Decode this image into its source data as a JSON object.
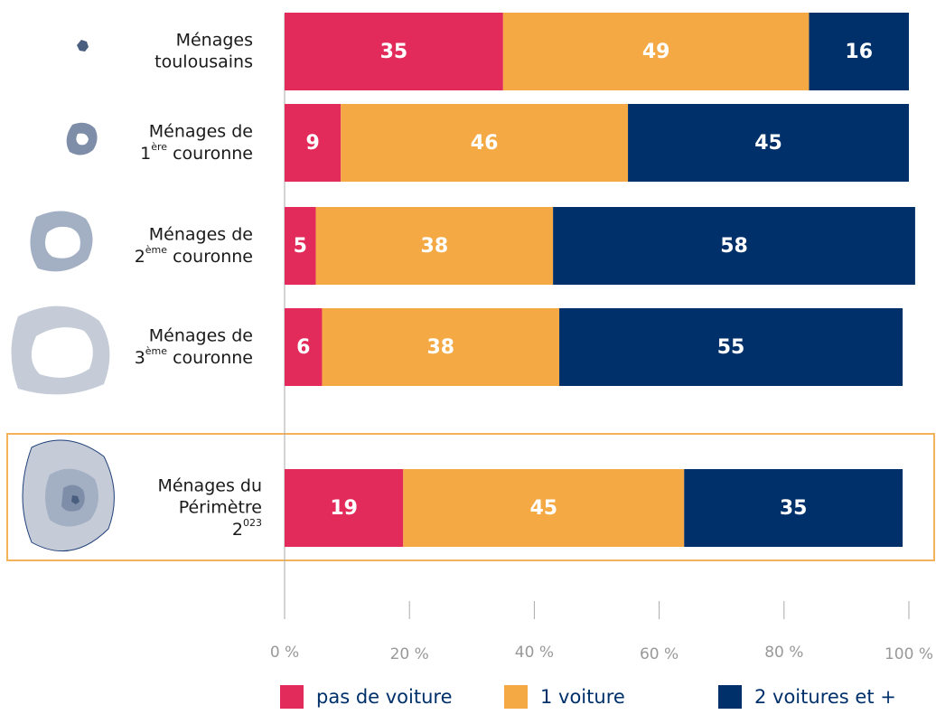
{
  "chart_data": {
    "type": "stacked-bar-horizontal",
    "categories": [
      [
        "Ménages",
        "toulousains"
      ],
      [
        "Ménages de",
        "1ère couronne"
      ],
      [
        "Ménages de",
        "2ème couronne"
      ],
      [
        "Ménages de",
        "3ème couronne"
      ],
      [
        "Ménages du",
        "Périmètre",
        "2023"
      ]
    ],
    "series": [
      {
        "name": "pas de voiture",
        "color": "#e32b5b",
        "values": [
          35,
          9,
          5,
          6,
          19
        ]
      },
      {
        "name": "1 voiture",
        "color": "#f4a944",
        "values": [
          49,
          46,
          38,
          38,
          45
        ]
      },
      {
        "name": "2 voitures et +",
        "color": "#00306a",
        "values": [
          16,
          45,
          58,
          55,
          35
        ]
      }
    ],
    "xlim": [
      0,
      100
    ],
    "xticks": [
      {
        "value": 0,
        "label": "0 %"
      },
      {
        "value": 20,
        "label": "20 %"
      },
      {
        "value": 40,
        "label": "40 %"
      },
      {
        "value": 60,
        "label": "60 %"
      },
      {
        "value": 80,
        "label": "80 %"
      },
      {
        "value": 100,
        "label": "100 %"
      }
    ]
  }
}
